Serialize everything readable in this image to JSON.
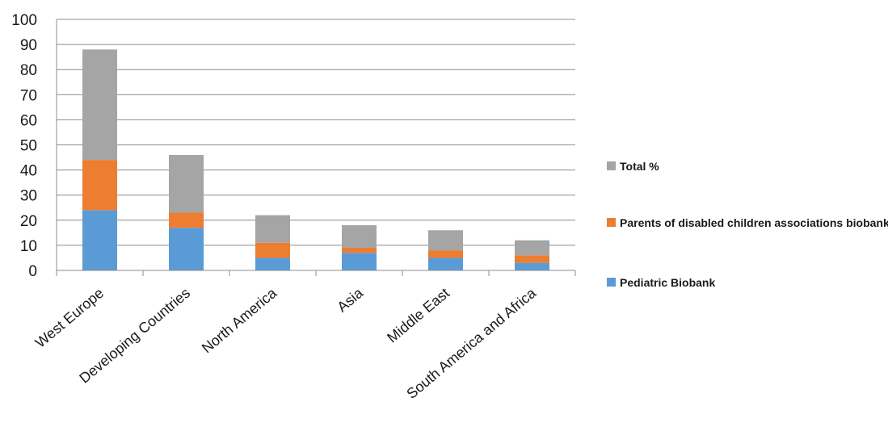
{
  "chart_data": {
    "type": "bar",
    "stacked": true,
    "categories": [
      "West Europe",
      "Developing Countries",
      "North America",
      "Asia",
      "Middle East",
      "South America and Africa"
    ],
    "series": [
      {
        "name": "Pediatric Biobank",
        "color": "#5b9bd5",
        "values": [
          24,
          17,
          5,
          7,
          5,
          3
        ]
      },
      {
        "name": "Parents of disabled children associations biobank",
        "color": "#ed7d31",
        "values": [
          20,
          6,
          6,
          2,
          3,
          3
        ]
      },
      {
        "name": "Total %",
        "color": "#a5a5a5",
        "values": [
          44,
          23,
          11,
          9,
          8,
          6
        ]
      }
    ],
    "yticks": [
      "0",
      "10",
      "20",
      "30",
      "40",
      "50",
      "60",
      "70",
      "80",
      "90",
      "100"
    ],
    "ylim": [
      0,
      100
    ],
    "grid": true,
    "legend_position": "right"
  }
}
